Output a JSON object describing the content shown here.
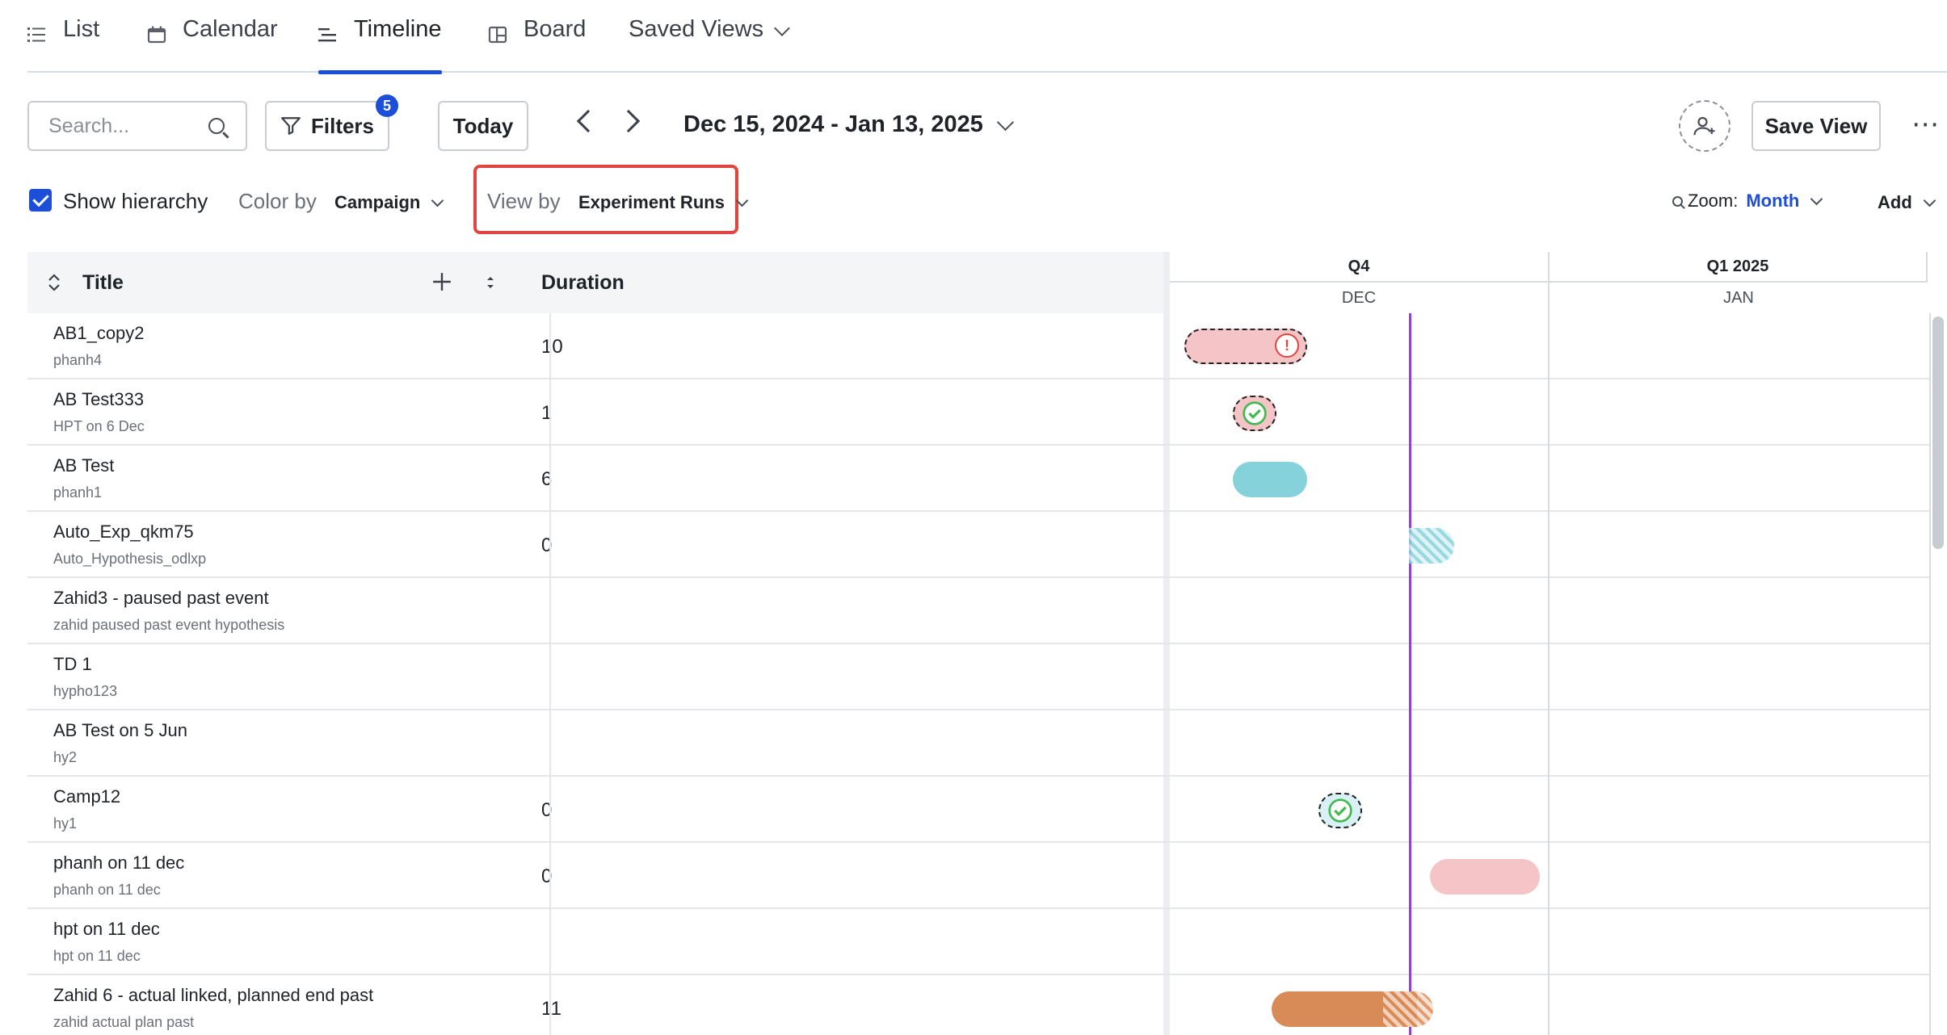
{
  "tabs": [
    {
      "label": "List",
      "icon": "list-icon"
    },
    {
      "label": "Calendar",
      "icon": "calendar-icon"
    },
    {
      "label": "Timeline",
      "icon": "timeline-icon",
      "active": true
    },
    {
      "label": "Board",
      "icon": "board-icon"
    },
    {
      "label": "Saved Views",
      "icon": "chevron-down-icon"
    }
  ],
  "toolbar": {
    "search_placeholder": "Search...",
    "filters_label": "Filters",
    "filters_count": "5",
    "today_label": "Today",
    "date_range": "Dec 15, 2024 - Jan 13, 2025",
    "save_view_label": "Save View",
    "more_label": "⋯"
  },
  "options": {
    "show_hierarchy_label": "Show hierarchy",
    "show_hierarchy_checked": true,
    "color_by_label": "Color by",
    "color_by_value": "Campaign",
    "view_by_label": "View by",
    "view_by_value": "Experiment Runs",
    "zoom_label": "Zoom:",
    "zoom_value": "Month",
    "add_label": "Add"
  },
  "grid": {
    "title_header": "Title",
    "duration_header": "Duration",
    "quarters": [
      "Q4",
      "Q1 2025"
    ],
    "months": [
      "DEC",
      "JAN"
    ]
  },
  "rows": [
    {
      "title": "AB1_copy2",
      "subtitle": "phanh4",
      "duration": "10"
    },
    {
      "title": "AB Test333",
      "subtitle": "HPT on 6 Dec",
      "duration": "1"
    },
    {
      "title": "AB Test",
      "subtitle": "phanh1",
      "duration": "6"
    },
    {
      "title": "Auto_Exp_qkm75",
      "subtitle": "Auto_Hypothesis_odlxp",
      "duration": "0"
    },
    {
      "title": "Zahid3 - paused past event",
      "subtitle": "zahid paused past event hypothesis",
      "duration": ""
    },
    {
      "title": "TD 1",
      "subtitle": "hypho123",
      "duration": ""
    },
    {
      "title": "AB Test on 5 Jun",
      "subtitle": "hy2",
      "duration": ""
    },
    {
      "title": "Camp12",
      "subtitle": "hy1",
      "duration": "0"
    },
    {
      "title": "phanh on 11 dec",
      "subtitle": "phanh on 11 dec",
      "duration": "0"
    },
    {
      "title": "hpt on 11 dec",
      "subtitle": "hpt on 11 dec",
      "duration": ""
    },
    {
      "title": "Zahid 6 - actual linked, planned end past",
      "subtitle": "zahid actual plan past",
      "duration": "11"
    }
  ],
  "colors": {
    "accent": "#1d4ed8",
    "highlight_border": "#e0463f",
    "today_line": "#8e44c4",
    "bar_pink": "#f4c4c6",
    "bar_teal": "#86d2da",
    "bar_orange": "#d98b57",
    "status_green": "#3fb950"
  }
}
